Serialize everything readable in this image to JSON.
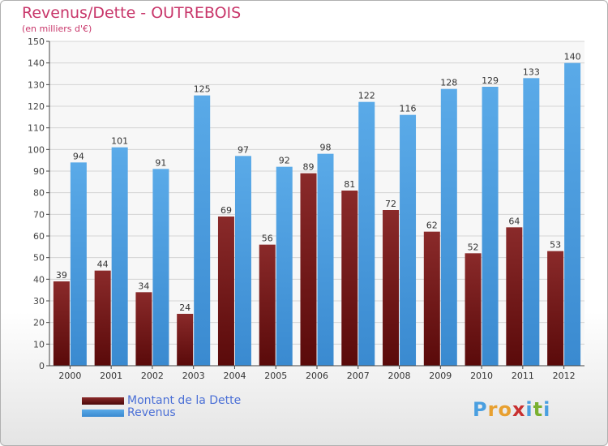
{
  "chart_data": {
    "type": "bar",
    "title": "Revenus/Dette - OUTREBOIS",
    "subtitle": "(en milliers d'€)",
    "categories": [
      "2000",
      "2001",
      "2002",
      "2003",
      "2004",
      "2005",
      "2006",
      "2007",
      "2008",
      "2009",
      "2010",
      "2011",
      "2012"
    ],
    "series": [
      {
        "name": "Montant de la Dette",
        "color": "#7a1a1a",
        "values": [
          39,
          44,
          34,
          24,
          69,
          56,
          89,
          81,
          72,
          62,
          52,
          64,
          53
        ]
      },
      {
        "name": "Revenus",
        "color": "#4a9fe0",
        "values": [
          94,
          101,
          91,
          125,
          97,
          92,
          98,
          122,
          116,
          128,
          129,
          133,
          140
        ]
      }
    ],
    "ylim": [
      0,
      150
    ],
    "yticks": [
      0,
      10,
      20,
      30,
      40,
      50,
      60,
      70,
      80,
      90,
      100,
      110,
      120,
      130,
      140,
      150
    ],
    "grid": true,
    "legend_position": "bottom-left"
  },
  "logo": {
    "letters": [
      "P",
      "r",
      "o",
      "x",
      "i",
      "t",
      "i"
    ],
    "colors": [
      "#4a9fe0",
      "#e8a030",
      "#e8a030",
      "#c83030",
      "#4a9fe0",
      "#7ab030",
      "#4a9fe0"
    ]
  }
}
